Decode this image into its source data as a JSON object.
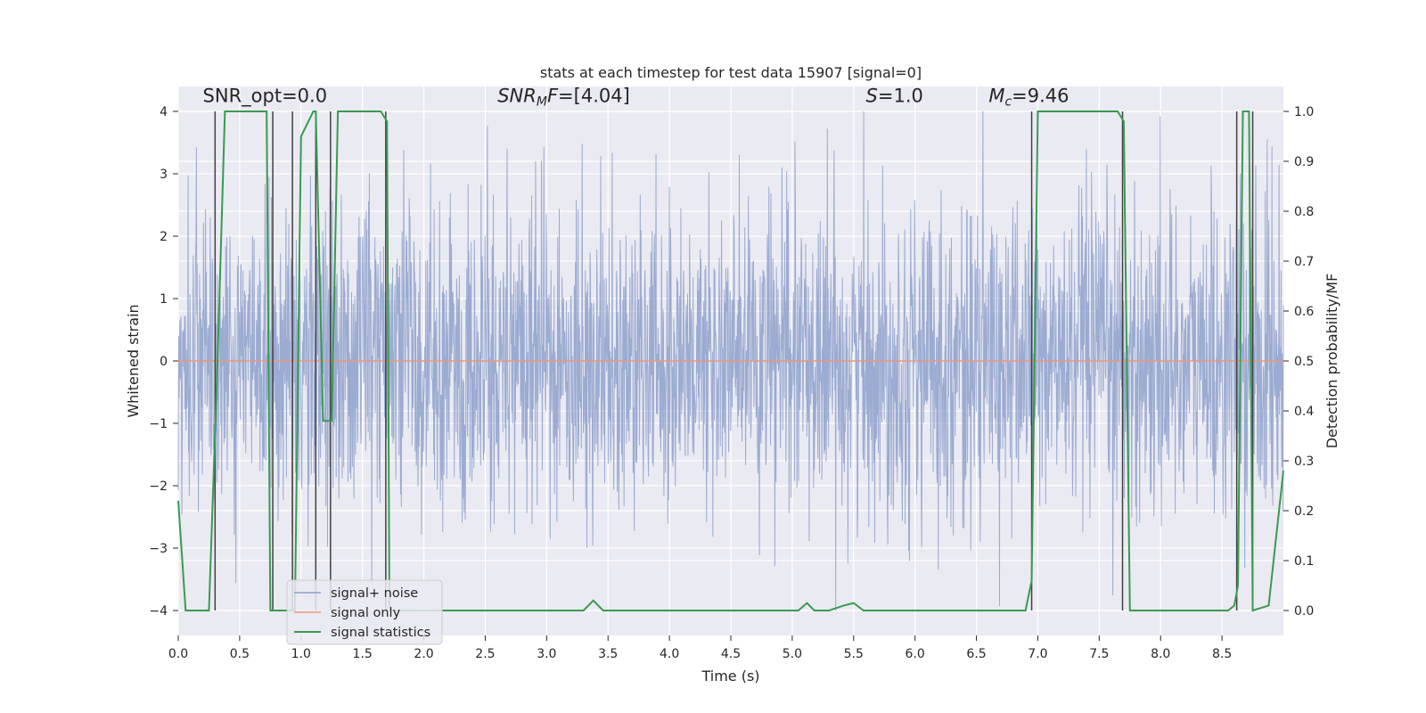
{
  "chart_data": {
    "type": "line",
    "title": "stats at each timestep for test data 15907 [signal=0]",
    "xlabel": "Time (s)",
    "ylabel": "Whitened strain",
    "y2label": "Detection probability/MF",
    "xlim": [
      0.0,
      9.0
    ],
    "ylim": [
      -4.4,
      4.4
    ],
    "y2lim": [
      -0.05,
      1.05
    ],
    "xticks": [
      "0.0",
      "0.5",
      "1.0",
      "1.5",
      "2.0",
      "2.5",
      "3.0",
      "3.5",
      "4.0",
      "4.5",
      "5.0",
      "5.5",
      "6.0",
      "6.5",
      "7.0",
      "7.5",
      "8.0",
      "8.5"
    ],
    "yticks": [
      "−4",
      "−3",
      "−2",
      "−1",
      "0",
      "1",
      "2",
      "3",
      "4"
    ],
    "y2ticks": [
      "0.0",
      "0.1",
      "0.2",
      "0.3",
      "0.4",
      "0.5",
      "0.6",
      "0.7",
      "0.8",
      "0.9",
      "1.0"
    ],
    "grid": true,
    "legend_position": "lower-left",
    "colors": {
      "noise": "#8da0cb",
      "signal_only": "#e9967a",
      "statistics": "#3a9a50",
      "vlines": "#404040",
      "background": "#eaeaf2",
      "grid": "#ffffff"
    },
    "annotations": [
      {
        "id": "snr-opt",
        "text": "SNR_opt=0.0",
        "x": 0.2
      },
      {
        "id": "snr-mf",
        "text": "SNR_MF=[4.04]",
        "x": 2.6
      },
      {
        "id": "s",
        "text": "S=1.0",
        "x": 5.6
      },
      {
        "id": "mc",
        "text": "M_c=9.46",
        "x": 6.6
      }
    ],
    "annotation_y": 4.15,
    "series": [
      {
        "name": "signal+ noise",
        "type": "noise-band",
        "amplitude_approx": 4.0,
        "note": "noisy whitened strain, ~ +/-2 typical, peaks ~ +/-4"
      },
      {
        "name": "signal only",
        "type": "line",
        "x": [
          0.0,
          9.0
        ],
        "y": [
          0.0,
          0.0
        ]
      },
      {
        "name": "signal statistics",
        "type": "line",
        "axis": "right",
        "x": [
          0.0,
          0.06,
          0.25,
          0.32,
          0.38,
          0.5,
          0.72,
          0.75,
          0.78,
          0.95,
          1.0,
          1.1,
          1.12,
          1.18,
          1.22,
          1.25,
          1.3,
          1.65,
          1.7,
          1.72,
          1.85,
          2.2,
          3.3,
          3.38,
          3.46,
          3.7,
          5.05,
          5.12,
          5.18,
          5.3,
          5.42,
          5.5,
          5.58,
          6.9,
          6.95,
          7.0,
          7.65,
          7.7,
          7.75,
          8.55,
          8.6,
          8.63,
          8.67,
          8.72,
          8.75,
          8.88,
          8.92,
          9.0
        ],
        "y": [
          0.22,
          0.0,
          0.0,
          0.5,
          1.0,
          1.0,
          1.0,
          0.0,
          0.0,
          0.0,
          0.95,
          1.0,
          1.0,
          0.38,
          0.38,
          0.38,
          1.0,
          1.0,
          0.98,
          0.0,
          0.0,
          0.0,
          0.0,
          0.02,
          0.0,
          0.0,
          0.0,
          0.015,
          0.0,
          0.0,
          0.01,
          0.015,
          0.0,
          0.0,
          0.06,
          1.0,
          1.0,
          0.98,
          0.0,
          0.0,
          0.01,
          0.05,
          1.0,
          1.0,
          0.0,
          0.01,
          0.1,
          0.28
        ]
      }
    ],
    "vertical_lines_x": [
      0.3,
      0.77,
      0.93,
      1.12,
      1.24,
      1.69,
      6.95,
      7.69,
      8.62,
      8.75
    ]
  },
  "legend": {
    "items": [
      {
        "label": "signal+ noise",
        "color": "#8da0cb"
      },
      {
        "label": "signal only",
        "color": "#e9967a"
      },
      {
        "label": "signal statistics",
        "color": "#3a9a50"
      }
    ]
  }
}
